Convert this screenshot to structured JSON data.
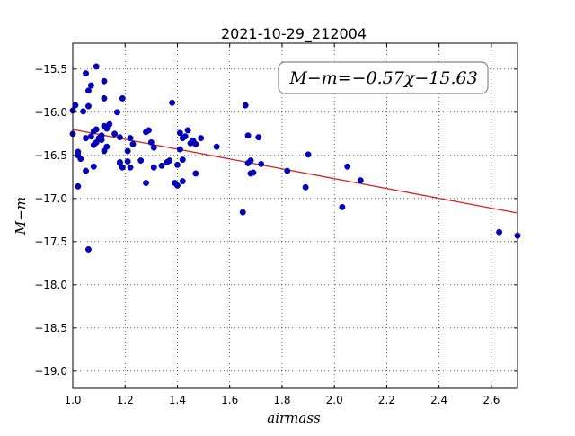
{
  "chart_data": {
    "type": "scatter",
    "title": "2021-10-29_212004",
    "xlabel": "airmass",
    "ylabel": "M−m",
    "xlim": [
      1.0,
      2.7
    ],
    "ylim": [
      -19.2,
      -15.2
    ],
    "y_inverted": true,
    "grid": true,
    "x_ticks": [
      "1.0",
      "1.2",
      "1.4",
      "1.6",
      "1.8",
      "2.0",
      "2.2",
      "2.4",
      "2.6"
    ],
    "x_tick_values": [
      1.0,
      1.2,
      1.4,
      1.6,
      1.8,
      2.0,
      2.2,
      2.4,
      2.6
    ],
    "y_ticks": [
      "−15.5",
      "−16.0",
      "−16.5",
      "−17.0",
      "−17.5",
      "−18.0",
      "−18.5",
      "−19.0"
    ],
    "y_tick_values": [
      -15.5,
      -16.0,
      -16.5,
      -17.0,
      -17.5,
      -18.0,
      -18.5,
      -19.0
    ],
    "annotation": "M−m=−0.57χ−15.63",
    "fit": {
      "slope": -0.57,
      "intercept": -15.63,
      "color": "#d62020"
    },
    "point_color": "#0000cc",
    "points": [
      [
        1.0,
        -16.25
      ],
      [
        1.01,
        -15.92
      ],
      [
        1.0,
        -15.98
      ],
      [
        1.02,
        -16.86
      ],
      [
        1.02,
        -16.46
      ],
      [
        1.02,
        -16.5
      ],
      [
        1.03,
        -16.54
      ],
      [
        1.04,
        -15.99
      ],
      [
        1.05,
        -15.55
      ],
      [
        1.05,
        -16.3
      ],
      [
        1.05,
        -16.68
      ],
      [
        1.06,
        -17.59
      ],
      [
        1.06,
        -15.93
      ],
      [
        1.06,
        -15.75
      ],
      [
        1.07,
        -16.28
      ],
      [
        1.07,
        -15.69
      ],
      [
        1.08,
        -16.63
      ],
      [
        1.08,
        -16.22
      ],
      [
        1.08,
        -16.38
      ],
      [
        1.09,
        -15.47
      ],
      [
        1.09,
        -16.35
      ],
      [
        1.09,
        -16.2
      ],
      [
        1.1,
        -16.3
      ],
      [
        1.11,
        -16.32
      ],
      [
        1.11,
        -16.27
      ],
      [
        1.12,
        -16.16
      ],
      [
        1.12,
        -15.64
      ],
      [
        1.12,
        -16.45
      ],
      [
        1.12,
        -15.84
      ],
      [
        1.13,
        -16.4
      ],
      [
        1.13,
        -16.19
      ],
      [
        1.14,
        -16.14
      ],
      [
        1.16,
        -16.25
      ],
      [
        1.17,
        -16.0
      ],
      [
        1.18,
        -16.29
      ],
      [
        1.18,
        -16.58
      ],
      [
        1.18,
        -16.59
      ],
      [
        1.19,
        -15.84
      ],
      [
        1.19,
        -16.64
      ],
      [
        1.21,
        -16.45
      ],
      [
        1.21,
        -16.57
      ],
      [
        1.22,
        -16.64
      ],
      [
        1.22,
        -16.3
      ],
      [
        1.23,
        -16.37
      ],
      [
        1.26,
        -16.56
      ],
      [
        1.28,
        -16.23
      ],
      [
        1.28,
        -16.82
      ],
      [
        1.29,
        -16.21
      ],
      [
        1.3,
        -16.35
      ],
      [
        1.31,
        -16.41
      ],
      [
        1.31,
        -16.64
      ],
      [
        1.34,
        -16.62
      ],
      [
        1.36,
        -16.58
      ],
      [
        1.37,
        -16.56
      ],
      [
        1.38,
        -15.89
      ],
      [
        1.39,
        -16.82
      ],
      [
        1.4,
        -16.85
      ],
      [
        1.4,
        -16.61
      ],
      [
        1.41,
        -16.43
      ],
      [
        1.41,
        -16.24
      ],
      [
        1.42,
        -16.3
      ],
      [
        1.42,
        -16.55
      ],
      [
        1.42,
        -16.8
      ],
      [
        1.43,
        -16.28
      ],
      [
        1.44,
        -16.21
      ],
      [
        1.45,
        -16.36
      ],
      [
        1.46,
        -16.33
      ],
      [
        1.47,
        -16.37
      ],
      [
        1.47,
        -16.71
      ],
      [
        1.49,
        -16.3
      ],
      [
        1.55,
        -16.4
      ],
      [
        1.65,
        -17.16
      ],
      [
        1.66,
        -15.92
      ],
      [
        1.67,
        -16.27
      ],
      [
        1.67,
        -16.59
      ],
      [
        1.68,
        -16.56
      ],
      [
        1.68,
        -16.71
      ],
      [
        1.69,
        -16.7
      ],
      [
        1.71,
        -16.29
      ],
      [
        1.72,
        -16.6
      ],
      [
        1.82,
        -16.68
      ],
      [
        1.89,
        -16.87
      ],
      [
        1.9,
        -16.49
      ],
      [
        2.03,
        -17.1
      ],
      [
        2.05,
        -16.63
      ],
      [
        2.1,
        -16.79
      ],
      [
        2.63,
        -17.39
      ],
      [
        2.7,
        -17.43
      ]
    ]
  }
}
